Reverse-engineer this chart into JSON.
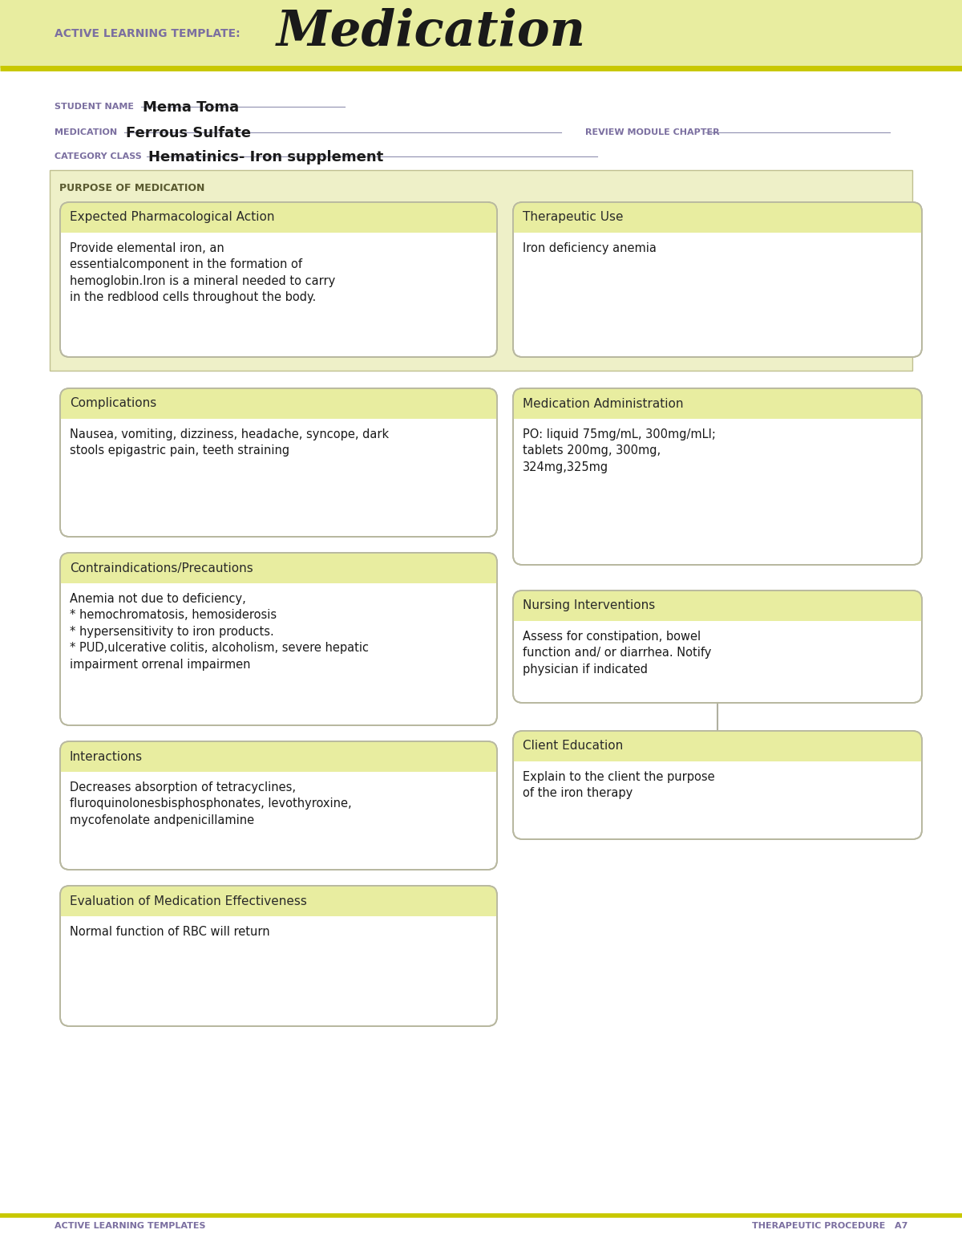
{
  "page_bg": "#ffffff",
  "header_bg": "#e8eda0",
  "header_line_color": "#c8c800",
  "header_label": "ACTIVE LEARNING TEMPLATE:",
  "header_title": "Medication",
  "header_label_color": "#7b6fa0",
  "header_title_color": "#1a1a1a",
  "student_name_label": "STUDENT NAME",
  "student_name_value": "Mema Toma",
  "medication_label": "MEDICATION",
  "medication_value": "Ferrous Sulfate",
  "review_label": "REVIEW MODULE CHAPTER",
  "category_label": "CATEGORY CLASS",
  "category_value": "Hematinics- Iron supplement",
  "label_color": "#7b6fa0",
  "box_header_bg": "#e8eda0",
  "box_bg": "#ffffff",
  "box_border": "#b8b8a0",
  "purpose_section_bg": "#eef0c8",
  "purpose_label": "PURPOSE OF MEDICATION",
  "purpose_label_color": "#5a5a30",
  "sections": [
    {
      "title": "Expected Pharmacological Action",
      "content": "Provide elemental iron, an\nessentialcomponent in the formation of\nhemoglobin.Iron is a mineral needed to carry\nin the redblood cells throughout the body.",
      "col": 0
    },
    {
      "title": "Therapeutic Use",
      "content": "Iron deficiency anemia",
      "col": 1
    },
    {
      "title": "Complications",
      "content": "Nausea, vomiting, dizziness, headache, syncope, dark\nstools epigastric pain, teeth straining",
      "col": 0
    },
    {
      "title": "Medication Administration",
      "content": "PO: liquid 75mg/mL, 300mg/mLI;\ntablets 200mg, 300mg,\n324mg,325mg",
      "col": 1
    },
    {
      "title": "Contraindications/Precautions",
      "content": "Anemia not due to deficiency,\n* hemochromatosis, hemosiderosis\n* hypersensitivity to iron products.\n* PUD,ulcerative colitis, alcoholism, severe hepatic\nimpairment orrenal impairmen",
      "col": 0
    },
    {
      "title": "Nursing Interventions",
      "content": "Assess for constipation, bowel\nfunction and/ or diarrhea. Notify\nphysician if indicated",
      "col": 1
    },
    {
      "title": "Interactions",
      "content": "Decreases absorption of tetracyclines,\nfluroquinolonesbisphosphonates, levothyroxine,\nmycofenolate andpenicillamine",
      "col": 0
    },
    {
      "title": "Client Education",
      "content": "Explain to the client the purpose\nof the iron therapy",
      "col": 1
    },
    {
      "title": "Evaluation of Medication Effectiveness",
      "content": "Normal function of RBC will return",
      "col": 0
    }
  ],
  "footer_left": "ACTIVE LEARNING TEMPLATES",
  "footer_right": "THERAPEUTIC PROCEDURE   A7",
  "footer_color": "#7b6fa0"
}
